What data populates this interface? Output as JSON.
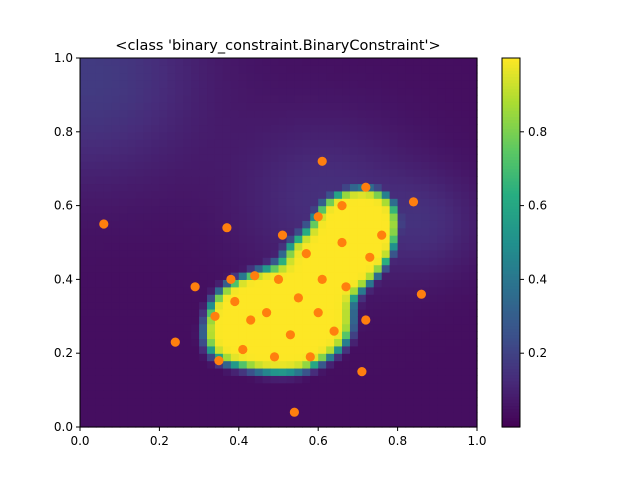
{
  "chart_data": {
    "type": "heatmap",
    "title": "<class 'binary_constraint.BinaryConstraint'>",
    "xlabel": "",
    "ylabel": "",
    "xlim": [
      0.0,
      1.0
    ],
    "ylim": [
      0.0,
      1.0
    ],
    "x_ticks": [
      "0.0",
      "0.2",
      "0.4",
      "0.6",
      "0.8",
      "1.0"
    ],
    "y_ticks": [
      "0.0",
      "0.2",
      "0.4",
      "0.6",
      "0.8",
      "1.0"
    ],
    "x_tick_values": [
      0.0,
      0.2,
      0.4,
      0.6,
      0.8,
      1.0
    ],
    "y_tick_values": [
      0.0,
      0.2,
      0.4,
      0.6,
      0.8,
      1.0
    ],
    "grid": false,
    "colormap": "viridis",
    "colorbar": {
      "range": [
        0.0,
        1.0
      ],
      "tick_values": [
        0.2,
        0.4,
        0.6,
        0.8
      ],
      "tick_labels": [
        "0.2",
        "0.4",
        "0.6",
        "0.8"
      ]
    },
    "heatmap": {
      "grid_size": 50,
      "description": "smooth field near 0 with a bright (~1.0) kidney-shaped region centered around (0.55, 0.35)",
      "hot_region_points": [
        [
          0.38,
          0.24
        ],
        [
          0.45,
          0.3
        ],
        [
          0.52,
          0.32
        ],
        [
          0.6,
          0.35
        ],
        [
          0.66,
          0.43
        ],
        [
          0.71,
          0.52
        ],
        [
          0.73,
          0.58
        ],
        [
          0.66,
          0.56
        ],
        [
          0.58,
          0.46
        ],
        [
          0.48,
          0.36
        ],
        [
          0.4,
          0.32
        ],
        [
          0.55,
          0.22
        ],
        [
          0.47,
          0.22
        ],
        [
          0.62,
          0.27
        ],
        [
          0.7,
          0.48
        ]
      ]
    },
    "series": [
      {
        "type": "scatter",
        "color": "#ff7f0e",
        "points": [
          [
            0.06,
            0.55
          ],
          [
            0.61,
            0.72
          ],
          [
            0.72,
            0.65
          ],
          [
            0.66,
            0.6
          ],
          [
            0.84,
            0.61
          ],
          [
            0.6,
            0.57
          ],
          [
            0.37,
            0.54
          ],
          [
            0.51,
            0.52
          ],
          [
            0.76,
            0.52
          ],
          [
            0.66,
            0.5
          ],
          [
            0.57,
            0.47
          ],
          [
            0.73,
            0.46
          ],
          [
            0.44,
            0.41
          ],
          [
            0.38,
            0.4
          ],
          [
            0.5,
            0.4
          ],
          [
            0.61,
            0.4
          ],
          [
            0.29,
            0.38
          ],
          [
            0.67,
            0.38
          ],
          [
            0.86,
            0.36
          ],
          [
            0.39,
            0.34
          ],
          [
            0.55,
            0.35
          ],
          [
            0.6,
            0.31
          ],
          [
            0.47,
            0.31
          ],
          [
            0.34,
            0.3
          ],
          [
            0.43,
            0.29
          ],
          [
            0.72,
            0.29
          ],
          [
            0.64,
            0.26
          ],
          [
            0.53,
            0.25
          ],
          [
            0.24,
            0.23
          ],
          [
            0.41,
            0.21
          ],
          [
            0.58,
            0.19
          ],
          [
            0.49,
            0.19
          ],
          [
            0.35,
            0.18
          ],
          [
            0.71,
            0.15
          ],
          [
            0.54,
            0.04
          ]
        ]
      }
    ]
  }
}
